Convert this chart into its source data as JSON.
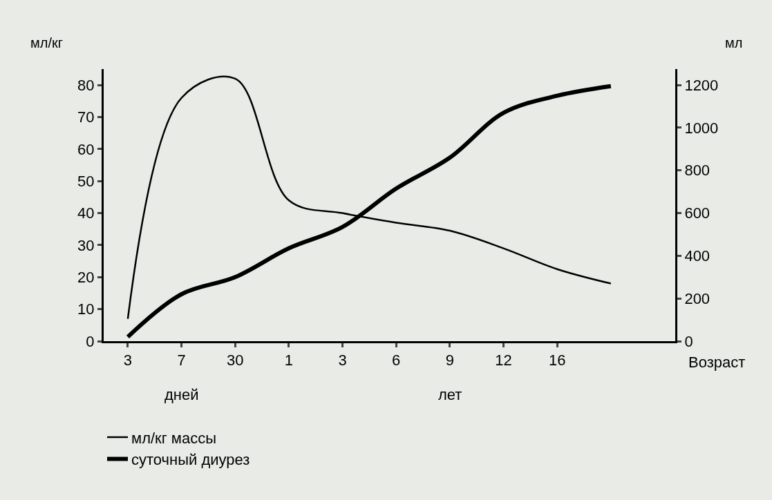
{
  "chart_data": {
    "type": "line",
    "ylabel": "мл/кг",
    "y2label": "мл",
    "xlabel": "Возраст",
    "categories": [
      "3",
      "7",
      "30",
      "1",
      "3",
      "6",
      "9",
      "12",
      "16",
      null
    ],
    "series": [
      {
        "name": "мл/кг массы",
        "color": "#000000",
        "values": [
          7,
          76,
          82,
          44,
          40,
          37,
          34.5,
          29,
          22.5,
          18
        ]
      },
      {
        "name": "суточный диурез",
        "color": "#000000",
        "axis": "y2",
        "values": [
          20,
          220,
          300,
          435,
          535,
          715,
          860,
          1070,
          1150,
          1195
        ]
      }
    ],
    "ylim": [
      0,
      85
    ],
    "yticks": [
      0,
      10,
      20,
      30,
      40,
      50,
      60,
      70,
      80
    ],
    "y2lim": [
      0,
      1275
    ],
    "y2ticks": [
      0,
      200,
      400,
      600,
      800,
      1000,
      1200
    ],
    "annotations": [
      "дней",
      "лет"
    ],
    "grid": false,
    "legend": "bottom left",
    "marker": "none",
    "line_style": "solid"
  }
}
